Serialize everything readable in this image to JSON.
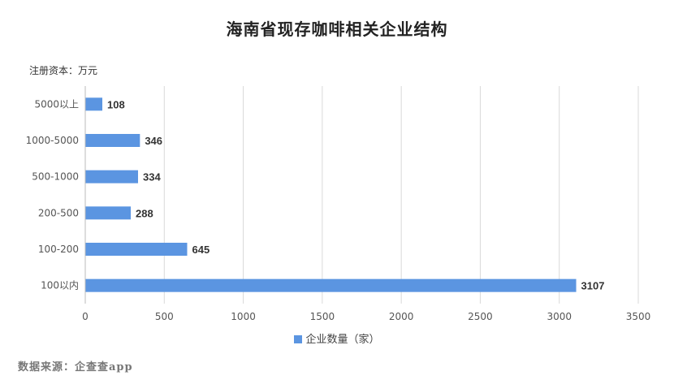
{
  "chart_data": {
    "type": "bar",
    "orientation": "horizontal",
    "title": "海南省现存咖啡相关企业结构",
    "unit_label": "注册资本：万元",
    "categories": [
      "5000以上",
      "1000-5000",
      "500-1000",
      "200-500",
      "100-200",
      "100以内"
    ],
    "series": [
      {
        "name": "企业数量（家）",
        "values": [
          108,
          346,
          334,
          288,
          645,
          3107
        ],
        "color": "#5b95e1"
      }
    ],
    "xlim": [
      0,
      3500
    ],
    "xticks": [
      0,
      500,
      1000,
      1500,
      2000,
      2500,
      3000,
      3500
    ],
    "grid": "vertical",
    "legend": "bottom-center",
    "data_labels": true
  },
  "source": "数据来源：企查查app"
}
